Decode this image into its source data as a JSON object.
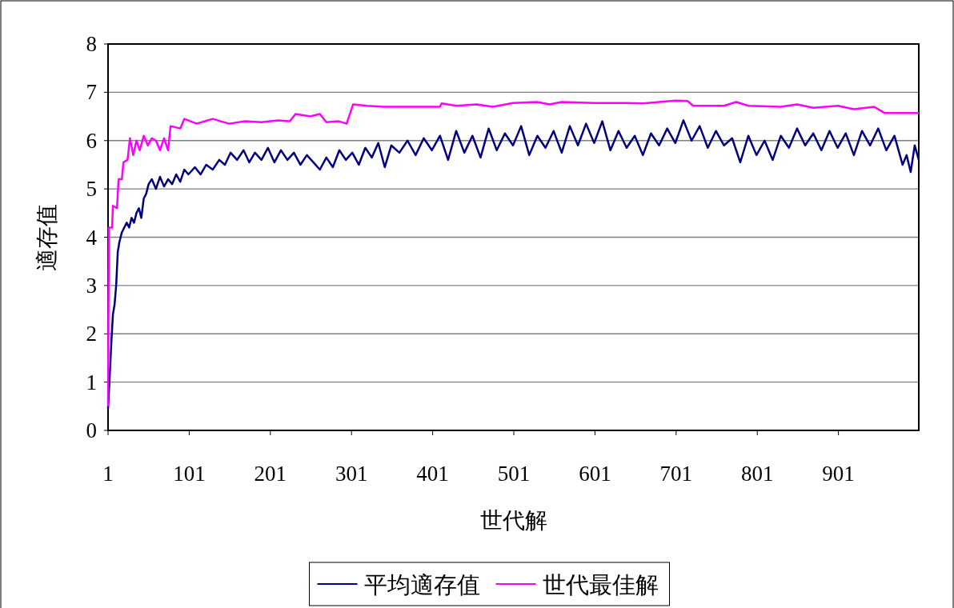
{
  "chart_data": {
    "type": "line",
    "xlabel": "世代解",
    "ylabel": "適存值",
    "xlim": [
      1,
      1000
    ],
    "xticks": [
      1,
      101,
      201,
      301,
      401,
      501,
      601,
      701,
      801,
      901
    ],
    "ylim": [
      0,
      8
    ],
    "yticks": [
      0,
      1,
      2,
      3,
      4,
      5,
      6,
      7,
      8
    ],
    "grid": "y",
    "legend": "bottom",
    "series": [
      {
        "name": "平均適存值",
        "color": "#000080",
        "x": [
          1,
          3,
          5,
          7,
          9,
          11,
          13,
          15,
          18,
          21,
          24,
          27,
          30,
          33,
          36,
          39,
          42,
          45,
          48,
          51,
          55,
          60,
          65,
          70,
          75,
          80,
          85,
          90,
          95,
          100,
          108,
          115,
          122,
          130,
          138,
          145,
          152,
          160,
          168,
          175,
          182,
          190,
          198,
          206,
          214,
          222,
          230,
          238,
          246,
          254,
          262,
          270,
          278,
          286,
          294,
          302,
          310,
          318,
          326,
          334,
          342,
          350,
          360,
          370,
          380,
          390,
          400,
          410,
          420,
          430,
          440,
          450,
          460,
          470,
          480,
          490,
          500,
          510,
          520,
          530,
          540,
          550,
          560,
          570,
          580,
          590,
          600,
          610,
          620,
          630,
          640,
          650,
          660,
          670,
          680,
          690,
          700,
          710,
          720,
          730,
          740,
          750,
          760,
          770,
          780,
          790,
          800,
          810,
          820,
          830,
          840,
          850,
          860,
          870,
          880,
          890,
          900,
          910,
          920,
          930,
          940,
          950,
          960,
          970,
          980,
          985,
          990,
          995,
          1000
        ],
        "values": [
          0.45,
          1.1,
          1.8,
          2.4,
          2.6,
          3.0,
          3.7,
          3.9,
          4.1,
          4.2,
          4.3,
          4.2,
          4.4,
          4.3,
          4.5,
          4.6,
          4.4,
          4.8,
          4.9,
          5.1,
          5.2,
          5.0,
          5.25,
          5.05,
          5.2,
          5.1,
          5.3,
          5.15,
          5.4,
          5.3,
          5.45,
          5.3,
          5.5,
          5.4,
          5.6,
          5.5,
          5.75,
          5.6,
          5.8,
          5.55,
          5.75,
          5.6,
          5.85,
          5.55,
          5.8,
          5.6,
          5.75,
          5.5,
          5.7,
          5.55,
          5.4,
          5.65,
          5.45,
          5.8,
          5.6,
          5.75,
          5.5,
          5.85,
          5.65,
          5.95,
          5.45,
          5.9,
          5.75,
          6.0,
          5.7,
          6.05,
          5.8,
          6.1,
          5.6,
          6.2,
          5.75,
          6.1,
          5.65,
          6.25,
          5.8,
          6.15,
          5.9,
          6.3,
          5.7,
          6.1,
          5.85,
          6.2,
          5.75,
          6.3,
          5.9,
          6.35,
          5.95,
          6.4,
          5.8,
          6.2,
          5.85,
          6.1,
          5.7,
          6.15,
          5.9,
          6.25,
          5.95,
          6.42,
          6.0,
          6.3,
          5.85,
          6.2,
          5.9,
          6.05,
          5.55,
          6.1,
          5.7,
          6.0,
          5.6,
          6.1,
          5.85,
          6.25,
          5.9,
          6.15,
          5.8,
          6.2,
          5.85,
          6.15,
          5.7,
          6.2,
          5.9,
          6.25,
          5.8,
          6.1,
          5.5,
          5.7,
          5.35,
          5.9,
          5.6
        ]
      },
      {
        "name": "世代最佳解",
        "color": "#ff00ff",
        "x": [
          1,
          2,
          6,
          7,
          12,
          14,
          18,
          20,
          25,
          28,
          32,
          36,
          40,
          45,
          50,
          55,
          60,
          65,
          70,
          75,
          78,
          90,
          95,
          110,
          130,
          150,
          170,
          190,
          210,
          225,
          232,
          250,
          262,
          270,
          285,
          295,
          303,
          320,
          340,
          410,
          412,
          430,
          455,
          475,
          500,
          530,
          545,
          560,
          600,
          640,
          660,
          700,
          715,
          722,
          760,
          775,
          790,
          830,
          850,
          870,
          900,
          920,
          945,
          958,
          1000
        ],
        "values": [
          0.5,
          4.2,
          4.2,
          4.65,
          4.6,
          5.2,
          5.2,
          5.55,
          5.6,
          6.05,
          5.7,
          6.0,
          5.8,
          6.1,
          5.9,
          6.05,
          6.0,
          5.8,
          6.05,
          5.8,
          6.3,
          6.25,
          6.45,
          6.35,
          6.45,
          6.35,
          6.4,
          6.38,
          6.42,
          6.4,
          6.55,
          6.5,
          6.55,
          6.38,
          6.4,
          6.35,
          6.75,
          6.72,
          6.7,
          6.7,
          6.77,
          6.72,
          6.75,
          6.7,
          6.78,
          6.8,
          6.75,
          6.8,
          6.78,
          6.78,
          6.77,
          6.83,
          6.82,
          6.72,
          6.72,
          6.8,
          6.72,
          6.7,
          6.75,
          6.68,
          6.72,
          6.65,
          6.7,
          6.57,
          6.57
        ]
      }
    ]
  }
}
